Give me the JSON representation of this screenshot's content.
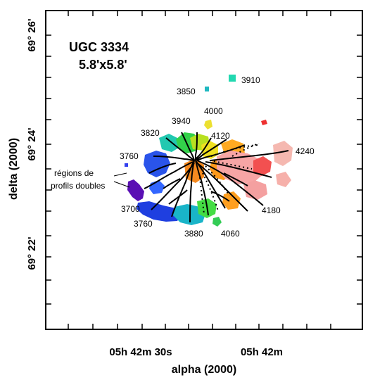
{
  "title": {
    "object": "UGC 3334",
    "field": "5.8'x5.8'"
  },
  "axes": {
    "xlabel": "alpha (2000)",
    "ylabel": "delta (2000)",
    "x_ticks": [
      "05h 42m 30s",
      "05h 42m"
    ],
    "y_ticks": [
      "69° 26'",
      "69° 24'",
      "69° 22'"
    ]
  },
  "annotation": "régions de\nprofils doubles",
  "velocity_labels": [
    "3910",
    "3850",
    "4000",
    "3940",
    "3820",
    "4120",
    "4240",
    "3760",
    "3700",
    "3760",
    "3880",
    "4060",
    "4180"
  ],
  "colors": {
    "frame": "#000000",
    "contour": "#000000"
  }
}
